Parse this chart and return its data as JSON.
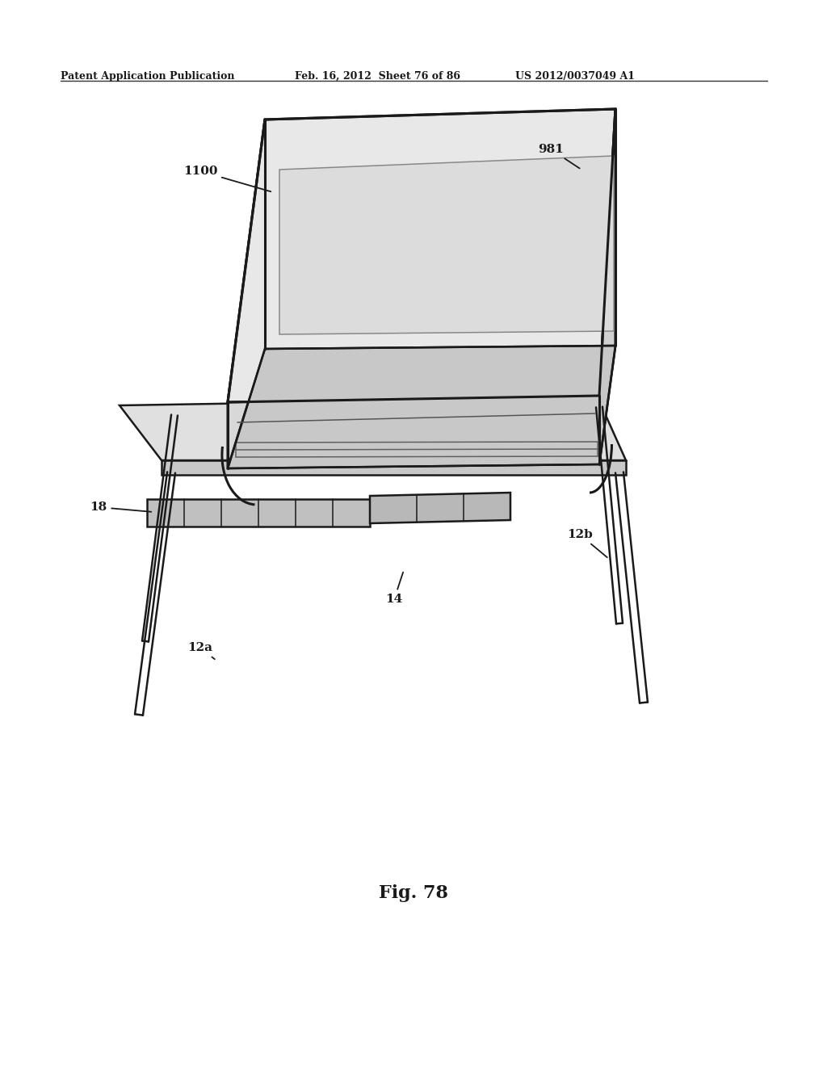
{
  "background_color": "#ffffff",
  "header_left": "Patent Application Publication",
  "header_middle": "Feb. 16, 2012  Sheet 76 of 86",
  "header_right": "US 2012/0037049 A1",
  "figure_label": "Fig. 78",
  "line_color": "#1a1a1a",
  "label_fontsize": 11,
  "header_fontsize": 9,
  "caption_fontsize": 16
}
